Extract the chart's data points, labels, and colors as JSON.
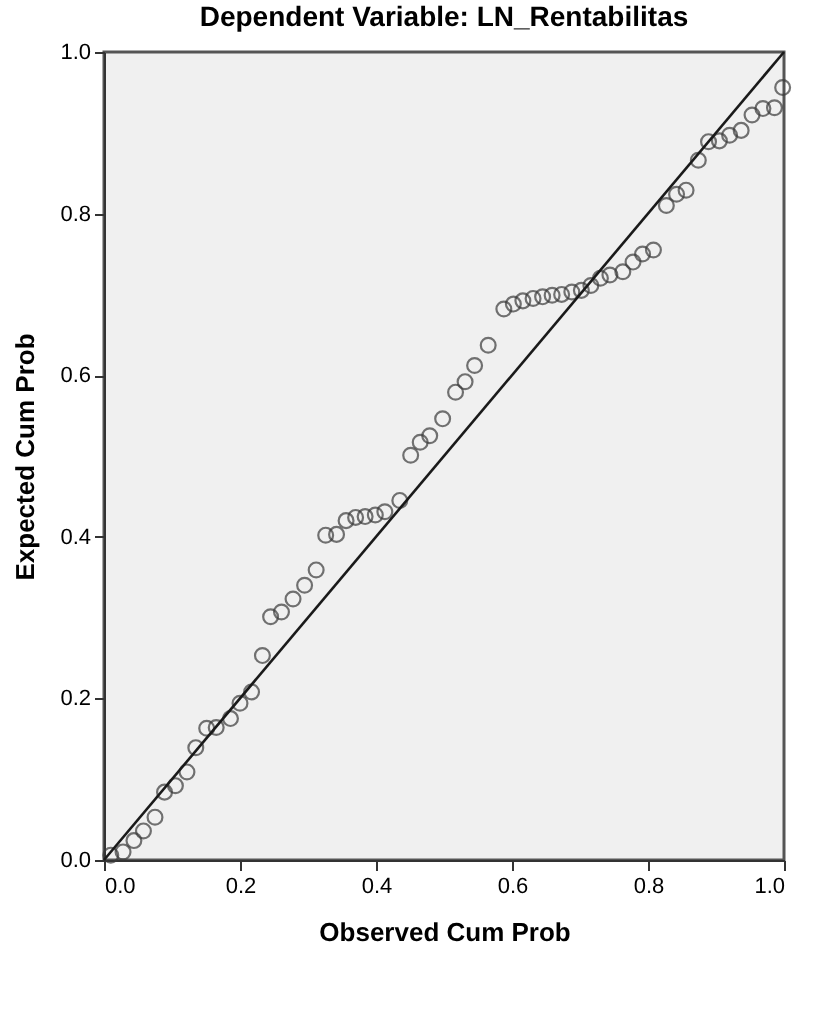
{
  "chart_data": {
    "type": "scatter",
    "title": "Dependent Variable: LN_Rentabilitas",
    "xlabel": "Observed Cum Prob",
    "ylabel": "Expected Cum Prob",
    "xlim": [
      0,
      1
    ],
    "ylim": [
      0,
      1
    ],
    "xticks": [
      {
        "value": 0,
        "label": "0.0"
      },
      {
        "value": 0.2,
        "label": "0.2"
      },
      {
        "value": 0.4,
        "label": "0.4"
      },
      {
        "value": 0.6,
        "label": "0.6"
      },
      {
        "value": 0.8,
        "label": "0.8"
      },
      {
        "value": 1,
        "label": "1.0"
      }
    ],
    "yticks": [
      {
        "value": 0,
        "label": "0.0"
      },
      {
        "value": 0.2,
        "label": "0.2"
      },
      {
        "value": 0.4,
        "label": "0.4"
      },
      {
        "value": 0.6,
        "label": "0.6"
      },
      {
        "value": 0.8,
        "label": "0.8"
      },
      {
        "value": 1,
        "label": "1.0"
      }
    ],
    "grid": false,
    "series": [
      {
        "marker": "circle",
        "color": "#3a3a3a",
        "x": [
          0.01,
          0.028,
          0.044,
          0.058,
          0.075,
          0.089,
          0.105,
          0.122,
          0.135,
          0.151,
          0.165,
          0.186,
          0.2,
          0.217,
          0.233,
          0.245,
          0.261,
          0.278,
          0.295,
          0.312,
          0.326,
          0.342,
          0.356,
          0.37,
          0.384,
          0.399,
          0.413,
          0.435,
          0.451,
          0.465,
          0.479,
          0.498,
          0.517,
          0.531,
          0.545,
          0.565,
          0.588,
          0.602,
          0.616,
          0.631,
          0.645,
          0.659,
          0.673,
          0.688,
          0.702,
          0.716,
          0.73,
          0.744,
          0.763,
          0.778,
          0.792,
          0.808,
          0.827,
          0.842,
          0.856,
          0.874,
          0.889,
          0.905,
          0.92,
          0.937,
          0.953,
          0.969,
          0.986,
          0.998
        ],
        "values": [
          0.006,
          0.01,
          0.024,
          0.036,
          0.053,
          0.084,
          0.092,
          0.109,
          0.139,
          0.163,
          0.164,
          0.175,
          0.194,
          0.208,
          0.253,
          0.301,
          0.307,
          0.323,
          0.34,
          0.359,
          0.402,
          0.403,
          0.42,
          0.424,
          0.425,
          0.427,
          0.431,
          0.445,
          0.501,
          0.517,
          0.525,
          0.546,
          0.579,
          0.592,
          0.612,
          0.637,
          0.682,
          0.688,
          0.692,
          0.695,
          0.697,
          0.699,
          0.7,
          0.703,
          0.705,
          0.711,
          0.72,
          0.724,
          0.728,
          0.74,
          0.75,
          0.755,
          0.81,
          0.824,
          0.829,
          0.866,
          0.889,
          0.89,
          0.897,
          0.903,
          0.922,
          0.93,
          0.931,
          0.956
        ]
      },
      {
        "type": "line",
        "marker": "none",
        "color": "#1a1a1a",
        "x": [
          0,
          1
        ],
        "values": [
          0,
          1
        ]
      }
    ]
  }
}
